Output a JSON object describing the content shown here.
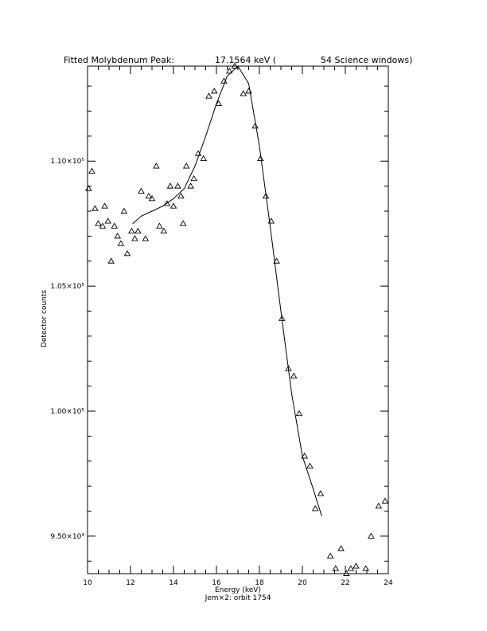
{
  "chart_data": {
    "type": "scatter",
    "title_left": "Fitted Molybdenum Peak:",
    "title_value": "17.1564 keV (",
    "title_right": "54 Science windows)",
    "xlabel": "Energy (keV)",
    "ylabel": "Detector counts",
    "caption": "Jem×2: orbit 1754",
    "xlim": [
      10,
      24
    ],
    "ylim": [
      93500,
      113800
    ],
    "x_ticks": [
      10,
      12,
      14,
      16,
      18,
      20,
      22,
      24
    ],
    "x_tick_labels": [
      "10",
      "12",
      "14",
      "16",
      "18",
      "20",
      "22",
      "24"
    ],
    "y_ticks": [
      95000,
      100000,
      105000,
      110000
    ],
    "y_tick_labels": [
      "9.50×10⁴",
      "1.00×10⁵",
      "1.05×10⁵",
      "1.10×10⁵"
    ],
    "series": [
      {
        "marker": "triangle",
        "points": [
          [
            10.05,
            108900
          ],
          [
            10.2,
            109600
          ],
          [
            10.35,
            108100
          ],
          [
            10.5,
            107500
          ],
          [
            10.7,
            107400
          ],
          [
            10.8,
            108200
          ],
          [
            10.95,
            107600
          ],
          [
            11.1,
            106000
          ],
          [
            11.25,
            107400
          ],
          [
            11.4,
            107000
          ],
          [
            11.55,
            106700
          ],
          [
            11.7,
            108000
          ],
          [
            11.85,
            106300
          ],
          [
            12.05,
            107200
          ],
          [
            12.2,
            106900
          ],
          [
            12.35,
            107200
          ],
          [
            12.5,
            108800
          ],
          [
            12.7,
            106900
          ],
          [
            12.85,
            108600
          ],
          [
            13.0,
            108500
          ],
          [
            13.2,
            109800
          ],
          [
            13.35,
            107400
          ],
          [
            13.55,
            107200
          ],
          [
            13.7,
            108300
          ],
          [
            13.85,
            109000
          ],
          [
            14.0,
            108200
          ],
          [
            14.2,
            109000
          ],
          [
            14.35,
            108600
          ],
          [
            14.45,
            107500
          ],
          [
            14.6,
            109800
          ],
          [
            14.8,
            109000
          ],
          [
            14.95,
            109300
          ],
          [
            15.15,
            110300
          ],
          [
            15.4,
            110100
          ],
          [
            15.65,
            112600
          ],
          [
            15.9,
            112800
          ],
          [
            16.1,
            112300
          ],
          [
            16.35,
            113200
          ],
          [
            16.6,
            113600
          ],
          [
            16.85,
            113800
          ],
          [
            17.25,
            112700
          ],
          [
            17.5,
            112800
          ],
          [
            17.8,
            111400
          ],
          [
            18.05,
            110100
          ],
          [
            18.3,
            108600
          ],
          [
            18.55,
            107600
          ],
          [
            18.8,
            106000
          ],
          [
            19.05,
            103700
          ],
          [
            19.35,
            101700
          ],
          [
            19.6,
            101400
          ],
          [
            19.85,
            99900
          ],
          [
            20.1,
            98200
          ],
          [
            20.35,
            97800
          ],
          [
            20.6,
            96100
          ],
          [
            20.85,
            96700
          ],
          [
            21.3,
            94200
          ],
          [
            21.55,
            93700
          ],
          [
            21.8,
            94500
          ],
          [
            22.05,
            93500
          ],
          [
            22.25,
            93700
          ],
          [
            22.5,
            93800
          ],
          [
            22.95,
            93700
          ],
          [
            23.2,
            95000
          ],
          [
            23.55,
            96200
          ],
          [
            23.85,
            96400
          ]
        ]
      }
    ],
    "fit_curve": [
      [
        12.1,
        107500
      ],
      [
        12.5,
        107800
      ],
      [
        13.0,
        108000
      ],
      [
        13.5,
        108200
      ],
      [
        14.0,
        108500
      ],
      [
        14.5,
        108900
      ],
      [
        15.0,
        109800
      ],
      [
        15.5,
        111000
      ],
      [
        16.0,
        112300
      ],
      [
        16.5,
        113400
      ],
      [
        17.0,
        113800
      ],
      [
        17.5,
        113100
      ],
      [
        18.0,
        110600
      ],
      [
        18.5,
        107400
      ],
      [
        19.0,
        104000
      ],
      [
        19.5,
        100700
      ],
      [
        20.0,
        98200
      ],
      [
        20.5,
        96900
      ],
      [
        20.9,
        95800
      ]
    ]
  }
}
